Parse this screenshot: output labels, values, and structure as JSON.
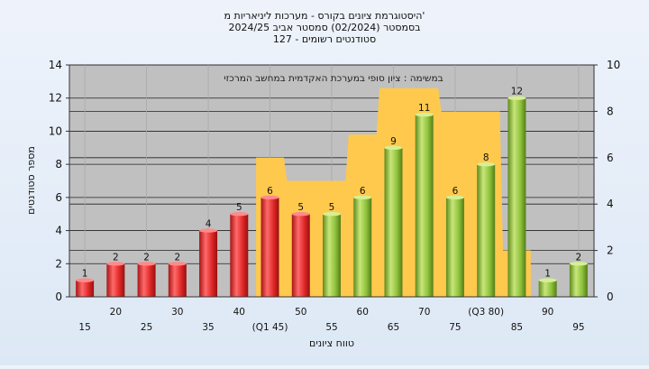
{
  "chart_data": {
    "type": "bar",
    "title_lines": [
      "היסטוגרמת ציונים בקורס - מערכות ליניאריות מ'",
      "בסמסטר (02/2024) סמסטר אביב 2024/25",
      "127 - סטודנטים רשומים"
    ],
    "annotation": "במשימה : ציון סופי במערכת האקדמית במחשב המרכזי",
    "xlabel": "טווח ציונים",
    "ylabel": "מספר סטודנטים",
    "categories": [
      "15",
      "20",
      "25",
      "30",
      "35",
      "40",
      "(Q1 45)",
      "50",
      "55",
      "60",
      "65",
      "70",
      "75",
      "(Q3 80)",
      "85",
      "90",
      "95"
    ],
    "values": [
      1,
      2,
      2,
      2,
      4,
      5,
      6,
      5,
      5,
      6,
      9,
      11,
      6,
      8,
      12,
      1,
      2
    ],
    "value_labels": [
      "1",
      "2",
      "2",
      "2",
      "4",
      "5",
      "6",
      "5",
      "5",
      "6",
      "9",
      "11",
      "6",
      "8",
      "12",
      "1",
      "2"
    ],
    "bar_colors": [
      "red",
      "red",
      "red",
      "red",
      "red",
      "red",
      "red",
      "red",
      "green",
      "green",
      "green",
      "green",
      "green",
      "green",
      "green",
      "green",
      "green"
    ],
    "area_values": [
      null,
      null,
      null,
      null,
      null,
      null,
      6,
      5,
      5,
      7,
      9,
      9,
      8,
      8,
      2,
      null,
      null
    ],
    "ylim_left": [
      0,
      14
    ],
    "ylim_right": [
      0,
      10
    ],
    "yticks_left": [
      "0",
      "2",
      "4",
      "6",
      "8",
      "10",
      "12",
      "14"
    ],
    "yticks_right": [
      "0",
      "2",
      "4",
      "6",
      "8",
      "10"
    ],
    "grid": true,
    "colors": {
      "red_bar": "#e23a3a",
      "green_bar": "#8fc23c",
      "area": "#ffc94d",
      "plot_bg": "#c0c0c0"
    }
  }
}
